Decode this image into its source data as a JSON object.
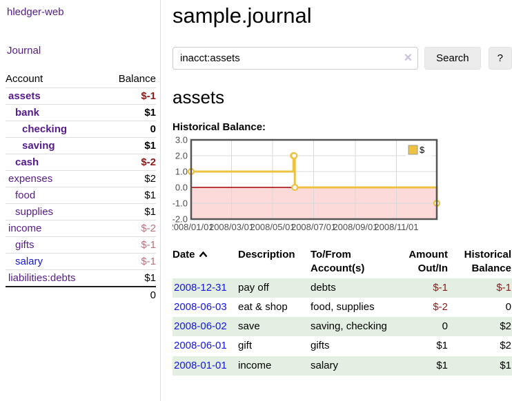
{
  "colors": {
    "purple": "#551a8b",
    "blue": "#1414e8",
    "negdark": "#8b1a1a",
    "negmuted": "#b4727c",
    "green": "#e3efe3",
    "divider": "#dddddd"
  },
  "brand": {
    "title": "hledger-web"
  },
  "nav": {
    "journal": "Journal"
  },
  "sidebar": {
    "accounts": {
      "headers": {
        "account": "Account",
        "balance": "Balance"
      },
      "rows": [
        {
          "name": "assets",
          "balance": "$-1",
          "indent": 1,
          "bold": true
        },
        {
          "name": "bank",
          "balance": "$1",
          "indent": 2,
          "bold": true
        },
        {
          "name": "checking",
          "balance": "0",
          "indent": 3,
          "bold": true
        },
        {
          "name": "saving",
          "balance": "$1",
          "indent": 3,
          "bold": true
        },
        {
          "name": "cash",
          "balance": "$-2",
          "indent": 2,
          "bold": true
        },
        {
          "name": "expenses",
          "balance": "$2",
          "indent": 1,
          "bold": false
        },
        {
          "name": "food",
          "balance": "$1",
          "indent": 2,
          "bold": false
        },
        {
          "name": "supplies",
          "balance": "$1",
          "indent": 2,
          "bold": false
        },
        {
          "name": "income",
          "balance": "$-2",
          "indent": 1,
          "bold": false
        },
        {
          "name": "gifts",
          "balance": "$-1",
          "indent": 2,
          "bold": false
        },
        {
          "name": "salary",
          "balance": "$-1",
          "indent": 2,
          "bold": false,
          "unvisited": true
        },
        {
          "name": "liabilities:debts",
          "balance": "$1",
          "indent": 1,
          "bold": false
        }
      ],
      "total": "0"
    }
  },
  "header": {
    "title": "sample.journal"
  },
  "search": {
    "value": "inacct:assets",
    "clear_icon": "×",
    "search_button": "Search",
    "help_button": "?"
  },
  "account_view": {
    "heading": "assets",
    "chart_title": "Historical Balance:"
  },
  "chart_data": {
    "type": "line",
    "title": "Historical Balance:",
    "series": [
      {
        "name": "$",
        "color": "#edc240",
        "steps": true,
        "points": [
          {
            "x": "2008-01-01",
            "y": 1
          },
          {
            "x": "2008-06-01",
            "y": 2
          },
          {
            "x": "2008-06-02",
            "y": 2
          },
          {
            "x": "2008-06-03",
            "y": 0
          },
          {
            "x": "2008-12-31",
            "y": -1
          }
        ]
      }
    ],
    "xlim": [
      "2008-01-01",
      "2008-12-31"
    ],
    "ylim": [
      -2,
      3
    ],
    "yticks": [
      3,
      2,
      1,
      0,
      -1,
      -2
    ],
    "xticks": [
      "2008/01/01",
      "2008/03/01",
      "2008/05/01",
      "2008/07/01",
      "2008/09/01",
      "2008/11/01"
    ],
    "legend": {
      "position": "top-right",
      "label": "$"
    },
    "grid": true,
    "grid_color": "#d8d8d8",
    "zero_line_color": "#a40000",
    "negative_region_color": "#fcdada",
    "border_color": "#545454",
    "tick_label_color": "#4d4d4d"
  },
  "register": {
    "headers": [
      {
        "label": "Date"
      },
      {
        "label": "Description"
      },
      {
        "label": "To/From Account(s)"
      },
      {
        "label": "Amount Out/In"
      },
      {
        "label": "Historical Balance"
      }
    ],
    "rows": [
      {
        "date": "2008-12-31",
        "description": "pay off",
        "accounts": "debts",
        "amount": "$-1",
        "balance": "$-1"
      },
      {
        "date": "2008-06-03",
        "description": "eat & shop",
        "accounts": "food, supplies",
        "amount": "$-2",
        "balance": "0"
      },
      {
        "date": "2008-06-02",
        "description": "save",
        "accounts": "saving, checking",
        "amount": "0",
        "balance": "$2"
      },
      {
        "date": "2008-06-01",
        "description": "gift",
        "accounts": "gifts",
        "amount": "$1",
        "balance": "$2"
      },
      {
        "date": "2008-01-01",
        "description": "income",
        "accounts": "salary",
        "amount": "$1",
        "balance": "$1"
      }
    ]
  }
}
